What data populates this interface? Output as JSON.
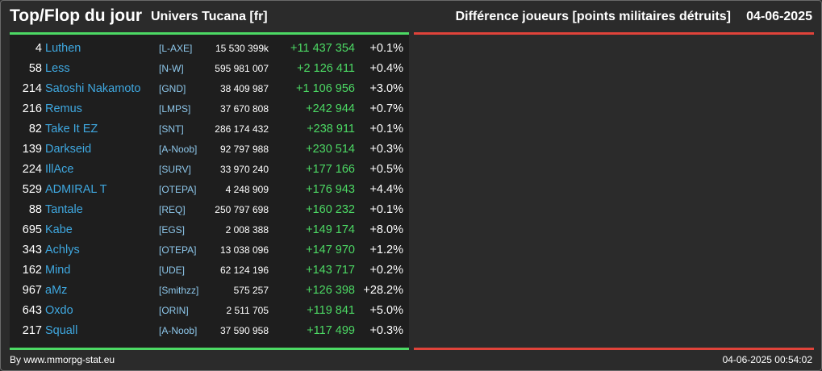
{
  "header": {
    "title": "Top/Flop du jour",
    "universe": "Univers Tucana [fr]",
    "metric": "Différence joueurs [points militaires détruits]",
    "date": "04-06-2025"
  },
  "colors": {
    "positive": "#4cd964",
    "negative": "#e0433a",
    "player_link": "#3fa8e0",
    "alliance_link": "#8ec8ec"
  },
  "top_rows": [
    {
      "rank": "4",
      "name": "Luthen",
      "alliance": "[L-AXE]",
      "points": "15 530 399k",
      "diff": "+11 437 354",
      "pct": "+0.1%"
    },
    {
      "rank": "58",
      "name": "Less",
      "alliance": "[N-W]",
      "points": "595 981 007",
      "diff": "+2 126 411",
      "pct": "+0.4%"
    },
    {
      "rank": "214",
      "name": "Satoshi Nakamoto",
      "alliance": "[GND]",
      "points": "38 409 987",
      "diff": "+1 106 956",
      "pct": "+3.0%"
    },
    {
      "rank": "216",
      "name": "Remus",
      "alliance": "[LMPS]",
      "points": "37 670 808",
      "diff": "+242 944",
      "pct": "+0.7%"
    },
    {
      "rank": "82",
      "name": "Take It EZ",
      "alliance": "[SNT]",
      "points": "286 174 432",
      "diff": "+238 911",
      "pct": "+0.1%"
    },
    {
      "rank": "139",
      "name": "Darkseid",
      "alliance": "[A-Noob]",
      "points": "92 797 988",
      "diff": "+230 514",
      "pct": "+0.3%"
    },
    {
      "rank": "224",
      "name": "IllAce",
      "alliance": "[SURV]",
      "points": "33 970 240",
      "diff": "+177 166",
      "pct": "+0.5%"
    },
    {
      "rank": "529",
      "name": "ADMIRAL T",
      "alliance": "[OTEPA]",
      "points": "4 248 909",
      "diff": "+176 943",
      "pct": "+4.4%"
    },
    {
      "rank": "88",
      "name": "Tantale",
      "alliance": "[REQ]",
      "points": "250 797 698",
      "diff": "+160 232",
      "pct": "+0.1%"
    },
    {
      "rank": "695",
      "name": "Kabe",
      "alliance": "[EGS]",
      "points": "2 008 388",
      "diff": "+149 174",
      "pct": "+8.0%"
    },
    {
      "rank": "343",
      "name": "Achlys",
      "alliance": "[OTEPA]",
      "points": "13 038 096",
      "diff": "+147 970",
      "pct": "+1.2%"
    },
    {
      "rank": "162",
      "name": "Mind",
      "alliance": "[UDE]",
      "points": "62 124 196",
      "diff": "+143 717",
      "pct": "+0.2%"
    },
    {
      "rank": "967",
      "name": "aMz",
      "alliance": "[Smithzz]",
      "points": "575 257",
      "diff": "+126 398",
      "pct": "+28.2%"
    },
    {
      "rank": "643",
      "name": "Oxdo",
      "alliance": "[ORIN]",
      "points": "2 511 705",
      "diff": "+119 841",
      "pct": "+5.0%"
    },
    {
      "rank": "217",
      "name": "Squall",
      "alliance": "[A-Noob]",
      "points": "37 590 958",
      "diff": "+117 499",
      "pct": "+0.3%"
    }
  ],
  "footer": {
    "credit": "By www.mmorpg-stat.eu",
    "timestamp": "04-06-2025 00:54:02"
  }
}
